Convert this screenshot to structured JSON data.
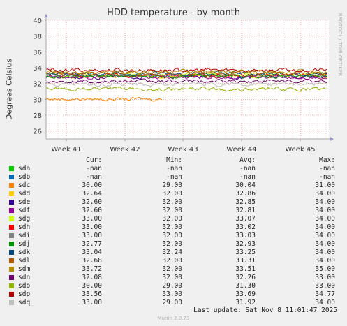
{
  "title": "HDD temperature - by month",
  "watermark": "RRDTOOL / TOBI OETIKER",
  "footer": "Munin 2.0.73",
  "last_update": "Last update: Sat Nov  8 11:01:47 2025",
  "legend_header": {
    "cur": "Cur:",
    "min": "Min:",
    "avg": "Avg:",
    "max": "Max:"
  },
  "chart_data": {
    "type": "line",
    "title": "HDD temperature - by month",
    "ylabel": "Degrees Celsius",
    "ylim": [
      25,
      40
    ],
    "yticks": [
      26,
      28,
      30,
      32,
      34,
      36,
      38,
      40
    ],
    "x_ticks": [
      "Week 41",
      "Week 42",
      "Week 43",
      "Week 44",
      "Week 45"
    ],
    "grid": true,
    "series": [
      {
        "name": "sda",
        "color": "#00cc00",
        "cur": "-nan",
        "min": "-nan",
        "avg": "-nan",
        "max": "-nan"
      },
      {
        "name": "sdb",
        "color": "#0066b3",
        "cur": "-nan",
        "min": "-nan",
        "avg": "-nan",
        "max": "-nan"
      },
      {
        "name": "sdc",
        "color": "#ff8000",
        "cur": "30.00",
        "min": "29.00",
        "avg": "30.04",
        "max": "31.00"
      },
      {
        "name": "sdd",
        "color": "#ffcc00",
        "cur": "32.64",
        "min": "32.00",
        "avg": "32.86",
        "max": "34.00"
      },
      {
        "name": "sde",
        "color": "#330099",
        "cur": "32.60",
        "min": "32.00",
        "avg": "32.85",
        "max": "34.00"
      },
      {
        "name": "sdf",
        "color": "#990099",
        "cur": "32.60",
        "min": "32.00",
        "avg": "32.81",
        "max": "34.00"
      },
      {
        "name": "sdg",
        "color": "#ccff00",
        "cur": "33.00",
        "min": "32.00",
        "avg": "33.07",
        "max": "34.00"
      },
      {
        "name": "sdh",
        "color": "#ff0000",
        "cur": "33.00",
        "min": "32.00",
        "avg": "33.02",
        "max": "34.00"
      },
      {
        "name": "sdi",
        "color": "#808080",
        "cur": "33.00",
        "min": "32.00",
        "avg": "33.03",
        "max": "34.00"
      },
      {
        "name": "sdj",
        "color": "#008f00",
        "cur": "32.77",
        "min": "32.00",
        "avg": "32.93",
        "max": "34.00"
      },
      {
        "name": "sdk",
        "color": "#00487d",
        "cur": "33.04",
        "min": "32.24",
        "avg": "33.25",
        "max": "34.00"
      },
      {
        "name": "sdl",
        "color": "#b35a00",
        "cur": "32.68",
        "min": "32.00",
        "avg": "33.31",
        "max": "34.00"
      },
      {
        "name": "sdm",
        "color": "#b38f00",
        "cur": "33.72",
        "min": "32.00",
        "avg": "33.51",
        "max": "35.00"
      },
      {
        "name": "sdn",
        "color": "#6b006b",
        "cur": "32.08",
        "min": "32.00",
        "avg": "32.26",
        "max": "33.00"
      },
      {
        "name": "sdo",
        "color": "#8fb300",
        "cur": "30.00",
        "min": "29.00",
        "avg": "31.30",
        "max": "33.00"
      },
      {
        "name": "sdp",
        "color": "#b30000",
        "cur": "33.56",
        "min": "33.00",
        "avg": "33.69",
        "max": "34.77"
      },
      {
        "name": "sdq",
        "color": "#bebebe",
        "cur": "33.00",
        "min": "29.00",
        "avg": "31.92",
        "max": "34.00"
      }
    ]
  }
}
